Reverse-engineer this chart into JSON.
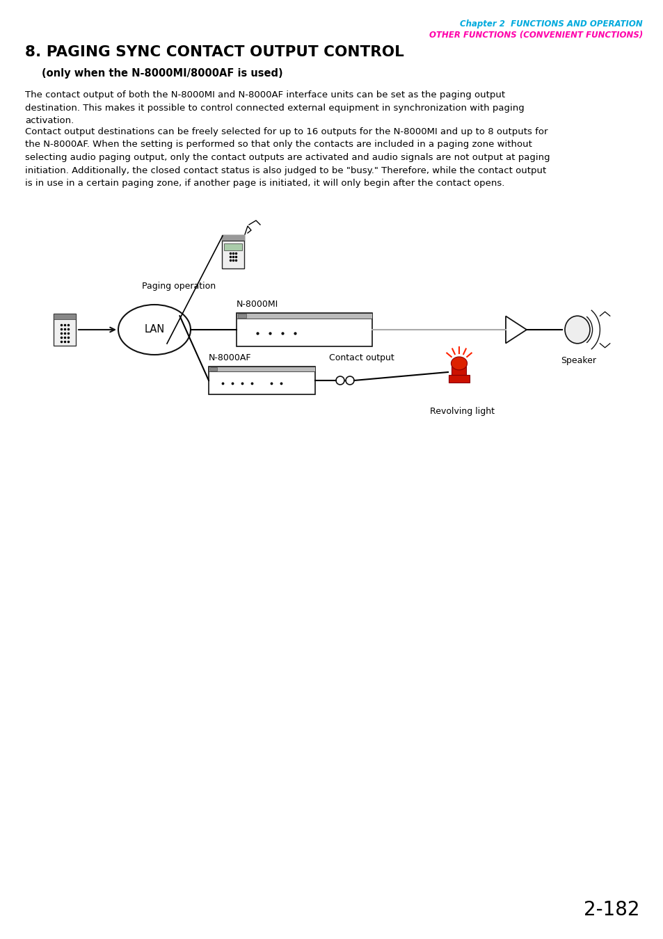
{
  "page_title_chapter": "Chapter 2  FUNCTIONS AND OPERATION",
  "page_title_section": "OTHER FUNCTIONS (CONVENIENT FUNCTIONS)",
  "section_number": "8. PAGING SYNC CONTACT OUTPUT CONTROL",
  "section_subtitle": "(only when the N-8000MI/8000AF is used)",
  "body_text1": "The contact output of both the N-8000MI and N-8000AF interface units can be set as the paging output\ndestination. This makes it possible to control connected external equipment in synchronization with paging\nactivation.",
  "body_text2": "Contact output destinations can be freely selected for up to 16 outputs for the N-8000MI and up to 8 outputs for\nthe N-8000AF. When the setting is performed so that only the contacts are included in a paging zone without\nselecting audio paging output, only the contact outputs are activated and audio signals are not output at paging\ninitiation. Additionally, the closed contact status is also judged to be \"busy.\" Therefore, while the contact output\nis in use in a certain paging zone, if another page is initiated, it will only begin after the contact opens.",
  "label_paging_operation": "Paging operation",
  "label_lan": "LAN",
  "label_n8000mi": "N-8000MI",
  "label_n8000af": "N-8000AF",
  "label_contact_output": "Contact output",
  "label_speaker": "Speaker",
  "label_revolving_light": "Revolving light",
  "page_number": "2-182",
  "bg_color": "#ffffff",
  "text_color": "#000000",
  "chapter_color": "#00aadd",
  "section_color": "#ff00aa"
}
